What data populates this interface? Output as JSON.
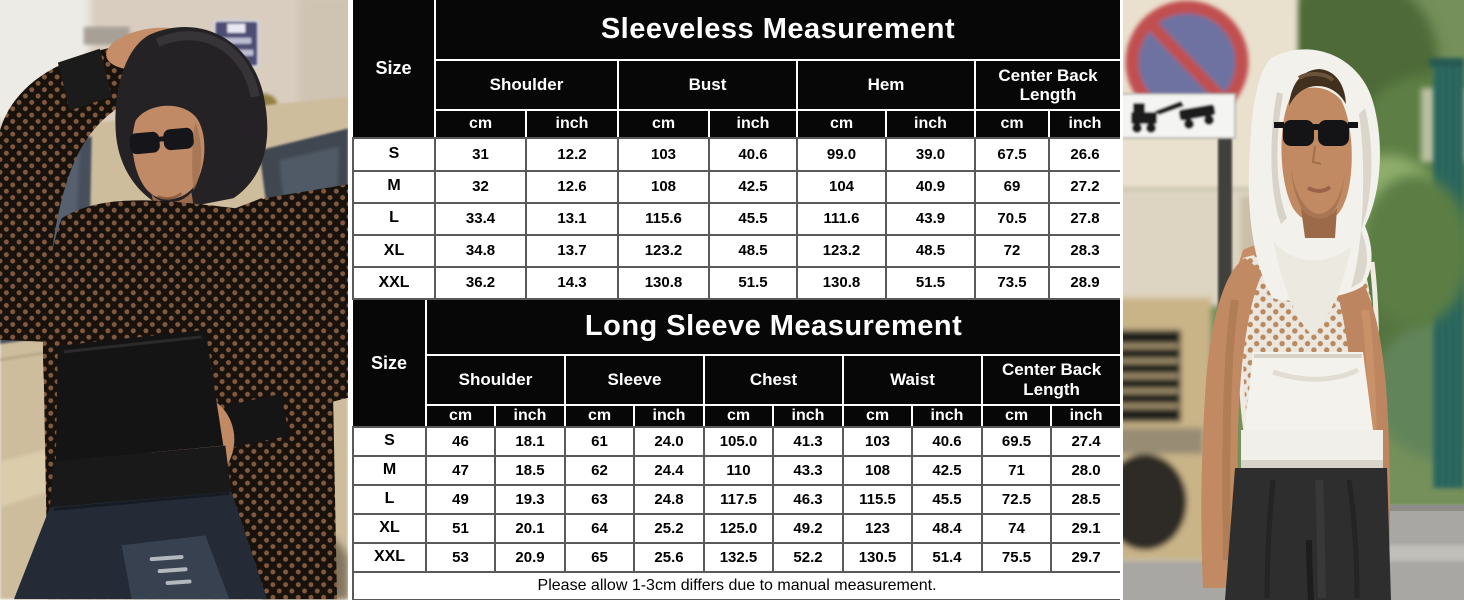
{
  "sleeveless": {
    "title": "Sleeveless Measurement",
    "size_header": "Size",
    "groups": [
      "Shoulder",
      "Bust",
      "Hem",
      "Center Back Length"
    ],
    "units": [
      "cm",
      "inch"
    ],
    "rows": [
      {
        "size": "S",
        "values": [
          "31",
          "12.2",
          "103",
          "40.6",
          "99.0",
          "39.0",
          "67.5",
          "26.6"
        ]
      },
      {
        "size": "M",
        "values": [
          "32",
          "12.6",
          "108",
          "42.5",
          "104",
          "40.9",
          "69",
          "27.2"
        ]
      },
      {
        "size": "L",
        "values": [
          "33.4",
          "13.1",
          "115.6",
          "45.5",
          "111.6",
          "43.9",
          "70.5",
          "27.8"
        ]
      },
      {
        "size": "XL",
        "values": [
          "34.8",
          "13.7",
          "123.2",
          "48.5",
          "123.2",
          "48.5",
          "72",
          "28.3"
        ]
      },
      {
        "size": "XXL",
        "values": [
          "36.2",
          "14.3",
          "130.8",
          "51.5",
          "130.8",
          "51.5",
          "73.5",
          "28.9"
        ]
      }
    ]
  },
  "long_sleeve": {
    "title": "Long Sleeve Measurement",
    "size_header": "Size",
    "groups": [
      "Shoulder",
      "Sleeve",
      "Chest",
      "Waist",
      "Center Back Length"
    ],
    "units": [
      "cm",
      "inch"
    ],
    "rows": [
      {
        "size": "S",
        "values": [
          "46",
          "18.1",
          "61",
          "24.0",
          "105.0",
          "41.3",
          "103",
          "40.6",
          "69.5",
          "27.4"
        ]
      },
      {
        "size": "M",
        "values": [
          "47",
          "18.5",
          "62",
          "24.4",
          "110",
          "43.3",
          "108",
          "42.5",
          "71",
          "28.0"
        ]
      },
      {
        "size": "L",
        "values": [
          "49",
          "19.3",
          "63",
          "24.8",
          "117.5",
          "46.3",
          "115.5",
          "45.5",
          "72.5",
          "28.5"
        ]
      },
      {
        "size": "XL",
        "values": [
          "51",
          "20.1",
          "64",
          "25.2",
          "125.0",
          "49.2",
          "123",
          "48.4",
          "74",
          "29.1"
        ]
      },
      {
        "size": "XXL",
        "values": [
          "53",
          "20.9",
          "65",
          "25.6",
          "132.5",
          "52.2",
          "130.5",
          "51.4",
          "75.5",
          "29.7"
        ]
      }
    ],
    "footnote": "Please allow 1-3cm differs due to manual measurement."
  },
  "photos": {
    "left": {
      "description": "Model wearing black fishnet mesh long-sleeve hoodie with hood up, hand on head, leaning against a beige vintage car on a street"
    },
    "right": {
      "description": "Model wearing white fishnet mesh sleeveless hooded tank with black pants, standing on a street with greenery and no-parking sign"
    }
  },
  "colors": {
    "header_bg": "#070707",
    "header_text": "#ffffff",
    "header_grid": "#ffffff",
    "data_grid": "#5a5a5a",
    "cell_bg": "#ffffff",
    "cell_text": "#000000"
  }
}
